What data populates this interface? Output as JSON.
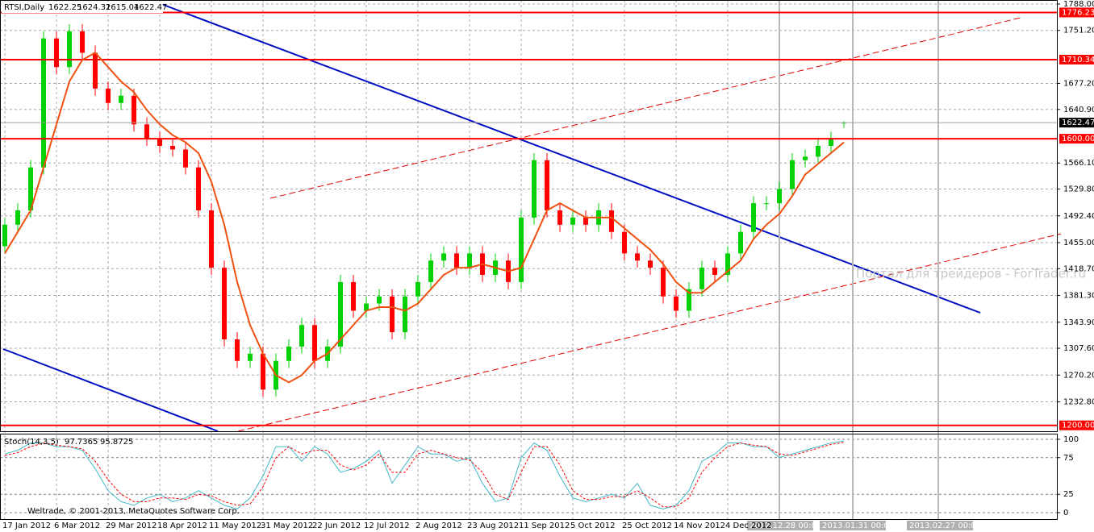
{
  "chart_data": [
    {
      "type": "candlestick",
      "title": "RTSI,Daily",
      "categories": [
        "17 Jan 2012",
        null,
        null,
        null,
        "6 Mar 2012",
        null,
        null,
        null,
        "29 Mar 2012",
        null,
        null,
        null,
        "18 Apr 2012",
        null,
        null,
        null,
        "11 May 2012",
        null,
        null,
        null,
        "31 May 2012",
        null,
        null,
        null,
        "22 Jun 2012",
        null,
        null,
        null,
        "12 Jul 2012",
        null,
        null,
        null,
        "2 Aug 2012",
        null,
        null,
        null,
        "23 Aug 2012",
        null,
        null,
        null,
        "11 Sep 2012",
        null,
        null,
        null,
        "5 Oct 2012",
        null,
        null,
        null,
        "25 Oct 2012",
        null,
        null,
        null,
        "14 Nov 2012",
        null,
        null,
        null,
        "4 Dec 2012",
        null,
        null,
        null,
        null,
        null,
        null,
        null,
        null,
        null
      ],
      "open": [
        1450,
        1480,
        1500,
        1560,
        1740,
        1700,
        1750,
        1720,
        1670,
        1650,
        1660,
        1620,
        1600,
        1590,
        1585,
        1560,
        1500,
        1420,
        1320,
        1290,
        1300,
        1250,
        1290,
        1310,
        1340,
        1290,
        1310,
        1400,
        1360,
        1370,
        1380,
        1330,
        1380,
        1400,
        1430,
        1440,
        1420,
        1440,
        1410,
        1430,
        1400,
        1490,
        1570,
        1500,
        1480,
        1490,
        1480,
        1500,
        1470,
        1440,
        1430,
        1420,
        1380,
        1360,
        1390,
        1420,
        1410,
        1440,
        1470,
        1510,
        1510,
        1530,
        1570,
        1575,
        1590,
        1622.25
      ],
      "high": [
        1490,
        1510,
        1570,
        1750,
        1750,
        1760,
        1760,
        1730,
        1680,
        1670,
        1670,
        1630,
        1610,
        1600,
        1595,
        1570,
        1510,
        1430,
        1330,
        1310,
        1310,
        1300,
        1320,
        1350,
        1350,
        1320,
        1410,
        1410,
        1380,
        1390,
        1390,
        1390,
        1410,
        1440,
        1450,
        1450,
        1450,
        1450,
        1440,
        1440,
        1500,
        1580,
        1580,
        1510,
        1500,
        1500,
        1510,
        1510,
        1480,
        1450,
        1440,
        1430,
        1390,
        1400,
        1430,
        1430,
        1450,
        1480,
        1520,
        1520,
        1540,
        1580,
        1585,
        1600,
        1610,
        1624.32
      ],
      "low": [
        1440,
        1470,
        1490,
        1550,
        1690,
        1690,
        1710,
        1660,
        1640,
        1640,
        1610,
        1590,
        1580,
        1575,
        1550,
        1490,
        1410,
        1310,
        1280,
        1280,
        1240,
        1240,
        1280,
        1300,
        1280,
        1280,
        1300,
        1350,
        1350,
        1360,
        1320,
        1320,
        1370,
        1390,
        1420,
        1410,
        1410,
        1400,
        1400,
        1390,
        1390,
        1480,
        1490,
        1470,
        1470,
        1470,
        1470,
        1460,
        1430,
        1420,
        1410,
        1370,
        1350,
        1350,
        1380,
        1400,
        1400,
        1430,
        1460,
        1500,
        1500,
        1520,
        1560,
        1565,
        1580,
        1615.04
      ],
      "close": [
        1480,
        1500,
        1560,
        1740,
        1700,
        1750,
        1720,
        1670,
        1650,
        1660,
        1620,
        1600,
        1590,
        1585,
        1560,
        1500,
        1420,
        1320,
        1290,
        1300,
        1250,
        1290,
        1310,
        1340,
        1290,
        1310,
        1400,
        1360,
        1370,
        1380,
        1330,
        1380,
        1400,
        1430,
        1440,
        1420,
        1440,
        1410,
        1430,
        1400,
        1490,
        1570,
        1500,
        1480,
        1490,
        1480,
        1500,
        1470,
        1440,
        1430,
        1420,
        1380,
        1360,
        1390,
        1420,
        1410,
        1440,
        1470,
        1510,
        1510,
        1530,
        1570,
        1575,
        1590,
        1600,
        1622.47
      ],
      "up_color": "#00d000",
      "down_color": "#ff0000",
      "series": [
        {
          "color": "#f05010",
          "values": [
            1440,
            1470,
            1500,
            1560,
            1620,
            1680,
            1710,
            1720,
            1700,
            1680,
            1665,
            1640,
            1620,
            1605,
            1595,
            1580,
            1540,
            1480,
            1400,
            1340,
            1300,
            1270,
            1260,
            1270,
            1290,
            1300,
            1320,
            1340,
            1360,
            1365,
            1365,
            1360,
            1370,
            1390,
            1410,
            1420,
            1420,
            1425,
            1420,
            1415,
            1420,
            1460,
            1500,
            1510,
            1500,
            1490,
            1490,
            1490,
            1475,
            1460,
            1445,
            1425,
            1400,
            1385,
            1385,
            1400,
            1415,
            1430,
            1460,
            1480,
            1495,
            1520,
            1550,
            1565,
            1580,
            1595
          ]
        }
      ],
      "ylim": [
        1191.8,
        1793.6
      ],
      "yticks": [
        {
          "value": 1788,
          "label": "1788.00"
        },
        {
          "value": 1751.2,
          "label": "1751.20"
        },
        {
          "value": 1677.2,
          "label": "1677.20"
        },
        {
          "value": 1640.9,
          "label": "1640.90"
        },
        {
          "value": 1566.1,
          "label": "1566.10"
        },
        {
          "value": 1529.8,
          "label": "1529.80"
        },
        {
          "value": 1492.4,
          "label": "1492.40"
        },
        {
          "value": 1455,
          "label": "1455.00"
        },
        {
          "value": 1418.7,
          "label": "1418.70"
        },
        {
          "value": 1381.3,
          "label": "1381.30"
        },
        {
          "value": 1343.9,
          "label": "1343.90"
        },
        {
          "value": 1307.6,
          "label": "1307.60"
        },
        {
          "value": 1270.2,
          "label": "1270.20"
        },
        {
          "value": 1232.8,
          "label": "1232.80"
        }
      ],
      "levels": [
        {
          "value": 1776.23,
          "color": "#ff0000"
        },
        {
          "value": 1710.34,
          "color": "#ff0000"
        },
        {
          "value": 1600,
          "label": "1600.00",
          "color": "#ff0000"
        },
        {
          "value": 1200,
          "label": "1200.00",
          "color": "#ff0000"
        },
        {
          "value": 1622.47,
          "color": "#a0a0a0"
        }
      ],
      "grid": true
    },
    {
      "type": "line",
      "title": "Stoch(14,3,5)",
      "series": [
        {
          "color": "#40b8c8",
          "values": [
            80,
            85,
            95,
            95,
            90,
            90,
            85,
            60,
            30,
            15,
            10,
            20,
            25,
            15,
            20,
            30,
            20,
            10,
            5,
            20,
            50,
            90,
            90,
            70,
            90,
            80,
            55,
            60,
            70,
            85,
            40,
            65,
            90,
            80,
            80,
            70,
            75,
            40,
            15,
            20,
            75,
            95,
            85,
            50,
            20,
            15,
            20,
            25,
            20,
            40,
            10,
            5,
            10,
            30,
            70,
            80,
            95,
            95,
            90,
            90,
            75,
            80,
            85,
            90,
            95,
            97.7365
          ]
        },
        {
          "color": "#ff0000",
          "values": [
            78,
            82,
            90,
            95,
            92,
            90,
            87,
            70,
            45,
            25,
            15,
            15,
            20,
            20,
            18,
            25,
            23,
            15,
            10,
            12,
            35,
            75,
            90,
            80,
            85,
            85,
            65,
            58,
            65,
            80,
            55,
            55,
            80,
            85,
            80,
            75,
            72,
            55,
            25,
            18,
            55,
            90,
            90,
            65,
            30,
            18,
            18,
            22,
            22,
            30,
            20,
            8,
            8,
            20,
            55,
            75,
            90,
            95,
            92,
            90,
            80,
            78,
            83,
            88,
            93,
            95.8725
          ]
        }
      ],
      "ylim": [
        -9.9,
        107.7
      ],
      "yticks": [
        100,
        75,
        25,
        0
      ]
    }
  ],
  "vlines": [
    "2012.12.28 00:00",
    "2013.01.31 00:00",
    "2013.02.27 00:00"
  ],
  "watermark": "Портал для трейдеров - ForTrader.ru",
  "copyright": "Weltrade, © 2001-2013, MetaQuotes Software Corp."
}
